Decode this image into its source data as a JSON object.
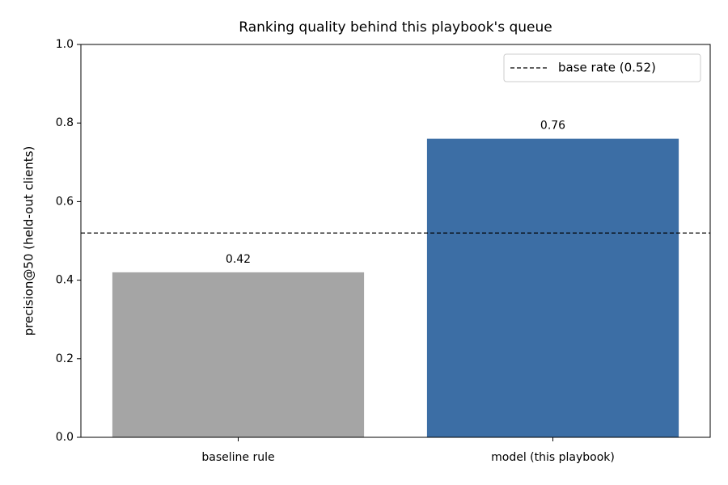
{
  "chart_data": {
    "type": "bar",
    "title": "Ranking quality behind this playbook's queue",
    "y_label": "precision@50 (held-out clients)",
    "categories": [
      "baseline rule",
      "model (this playbook)"
    ],
    "values": [
      0.42,
      0.76
    ],
    "colors": [
      "#a5a5a5",
      "#3c6ea5"
    ],
    "ylim": [
      0,
      1
    ],
    "yticks": [
      {
        "value": 0,
        "label": "0.0"
      },
      0.2,
      0.4,
      0.6,
      0.8,
      {
        "value": 1,
        "label": "1.0"
      }
    ],
    "reference_line": {
      "value": 0.52,
      "label": "base rate (0.52)",
      "style": "dashed",
      "color": "#000000"
    },
    "legend": "upper right",
    "grid": false
  }
}
